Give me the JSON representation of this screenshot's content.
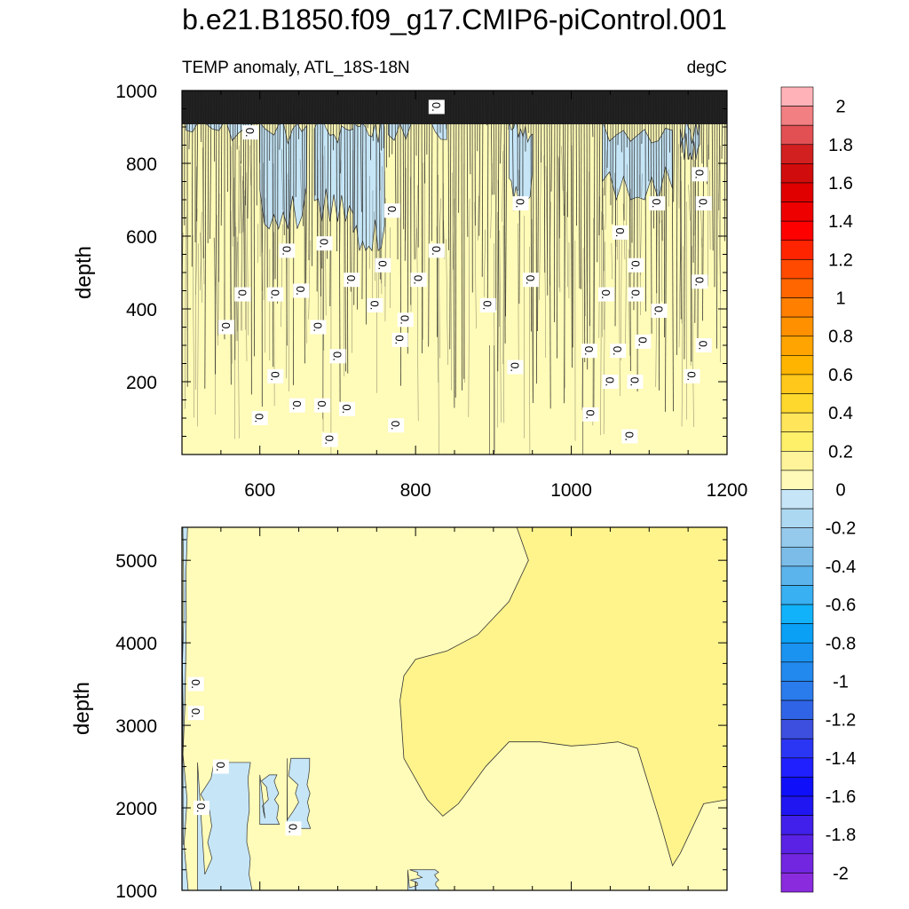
{
  "title": "b.e21.B1850.f09_g17.CMIP6-piControl.001",
  "chart_data": [
    {
      "type": "heatmap",
      "panel": "upper",
      "left_label": "TEMP anomaly, ATL_18S-18N",
      "right_label": "degC",
      "ylabel": "depth",
      "xlabel": "",
      "xlim": [
        500,
        1200
      ],
      "ylim": [
        1000,
        0
      ],
      "xticks": [
        "600",
        "800",
        "1000",
        "1200"
      ],
      "yticks": [
        "200",
        "400",
        "600",
        "800",
        "1000"
      ],
      "background_interval": "0 to 0.1",
      "regions": [
        {
          "name": "negative",
          "interval": "-0.1 to 0",
          "color": "#c6e6f7",
          "columns": [
            {
              "x": [
                505,
                590
              ],
              "depth_bottom": 1000
            },
            {
              "x": [
                600,
                660
              ],
              "depth_bottom": 620
            },
            {
              "x": [
                670,
                720
              ],
              "depth_bottom": 640
            },
            {
              "x": [
                720,
                760
              ],
              "depth_bottom": 560
            },
            {
              "x": [
                765,
                840
              ],
              "depth_bottom": 1000
            },
            {
              "x": [
                920,
                950
              ],
              "depth_bottom": 700
            },
            {
              "x": [
                1040,
                1130
              ],
              "depth_bottom": 700
            },
            {
              "x": [
                1140,
                1165
              ],
              "depth_bottom": 810
            }
          ]
        },
        {
          "name": "surface-noise",
          "interval": "many contours",
          "depth": [
            0,
            120
          ],
          "color": "#1a1a1a"
        }
      ],
      "contour_labels": [
        {
          "text": "0.",
          "x": 690,
          "y": 40
        },
        {
          "text": "0.",
          "x": 775,
          "y": 80
        },
        {
          "text": "0.",
          "x": 1075,
          "y": 50
        },
        {
          "text": "0.",
          "x": 600,
          "y": 100
        },
        {
          "text": "0.",
          "x": 648,
          "y": 135
        },
        {
          "text": "0.",
          "x": 680,
          "y": 135
        },
        {
          "text": "0.",
          "x": 712,
          "y": 125
        },
        {
          "text": "0.",
          "x": 1025,
          "y": 110
        },
        {
          "text": "0.",
          "x": 620,
          "y": 215
        },
        {
          "text": "0.",
          "x": 1050,
          "y": 200
        },
        {
          "text": "0.",
          "x": 1082,
          "y": 200
        },
        {
          "text": "0.",
          "x": 1155,
          "y": 215
        },
        {
          "text": "0.",
          "x": 928,
          "y": 240
        },
        {
          "text": "0.",
          "x": 700,
          "y": 270
        },
        {
          "text": "0.",
          "x": 1023,
          "y": 285
        },
        {
          "text": "0.",
          "x": 1060,
          "y": 285
        },
        {
          "text": "0.",
          "x": 1170,
          "y": 300
        },
        {
          "text": "0.",
          "x": 1092,
          "y": 310
        },
        {
          "text": "0.",
          "x": 780,
          "y": 315
        },
        {
          "text": "0.",
          "x": 557,
          "y": 350
        },
        {
          "text": "0.",
          "x": 675,
          "y": 350
        },
        {
          "text": "0.",
          "x": 787,
          "y": 370
        },
        {
          "text": "0.",
          "x": 1113,
          "y": 395
        },
        {
          "text": "0.",
          "x": 748,
          "y": 410
        },
        {
          "text": "0.",
          "x": 893,
          "y": 410
        },
        {
          "text": "0.",
          "x": 578,
          "y": 440
        },
        {
          "text": "0.",
          "x": 620,
          "y": 440
        },
        {
          "text": "0.",
          "x": 1045,
          "y": 440
        },
        {
          "text": "0.",
          "x": 1083,
          "y": 440
        },
        {
          "text": "0.",
          "x": 653,
          "y": 450
        },
        {
          "text": "0.",
          "x": 804,
          "y": 480
        },
        {
          "text": "0.",
          "x": 718,
          "y": 480
        },
        {
          "text": "0.",
          "x": 1165,
          "y": 475
        },
        {
          "text": "0.",
          "x": 948,
          "y": 480
        },
        {
          "text": "0.",
          "x": 758,
          "y": 520
        },
        {
          "text": "0.",
          "x": 1083,
          "y": 520
        },
        {
          "text": "0.",
          "x": 635,
          "y": 560
        },
        {
          "text": "0.",
          "x": 827,
          "y": 560
        },
        {
          "text": "0.",
          "x": 683,
          "y": 580
        },
        {
          "text": "0.",
          "x": 1063,
          "y": 610
        },
        {
          "text": "0.",
          "x": 770,
          "y": 670
        },
        {
          "text": "0.",
          "x": 935,
          "y": 690
        },
        {
          "text": "0.",
          "x": 1110,
          "y": 690
        },
        {
          "text": "0.",
          "x": 1170,
          "y": 690
        },
        {
          "text": "0.",
          "x": 1165,
          "y": 770
        },
        {
          "text": "0.",
          "x": 588,
          "y": 885
        },
        {
          "text": "0.",
          "x": 827,
          "y": 955
        }
      ]
    },
    {
      "type": "heatmap",
      "panel": "lower",
      "ylabel": "depth",
      "xlabel": "",
      "xlim": [
        500,
        1200
      ],
      "ylim": [
        5400,
        1000
      ],
      "yticks": [
        "1000",
        "2000",
        "3000",
        "4000",
        "5000"
      ],
      "background_interval": "0 to 0.1",
      "regions": [
        {
          "name": "warm-deep",
          "interval": "0.1 to 0.2",
          "color": "#fff48c",
          "boundary": [
            [
              1200,
              2100
            ],
            [
              1170,
              2050
            ],
            [
              1140,
              1450
            ],
            [
              1130,
              1300
            ],
            [
              1115,
              1800
            ],
            [
              1085,
              2720
            ],
            [
              1060,
              2800
            ],
            [
              1030,
              2770
            ],
            [
              1000,
              2750
            ],
            [
              960,
              2800
            ],
            [
              920,
              2800
            ],
            [
              890,
              2500
            ],
            [
              855,
              2050
            ],
            [
              835,
              1900
            ],
            [
              815,
              2100
            ],
            [
              785,
              2600
            ],
            [
              780,
              3300
            ],
            [
              785,
              3600
            ],
            [
              800,
              3800
            ],
            [
              840,
              3900
            ],
            [
              880,
              4100
            ],
            [
              920,
              4500
            ],
            [
              945,
              5000
            ],
            [
              930,
              5400
            ],
            [
              1200,
              5400
            ]
          ]
        },
        {
          "name": "negative",
          "interval": "-0.1 to 0",
          "color": "#c6e6f7",
          "patches": [
            {
              "x": [
                500,
                508
              ],
              "depth": [
                1000,
                5400
              ]
            },
            {
              "x": [
                520,
                590
              ],
              "depth": [
                1000,
                2550
              ]
            },
            {
              "x": [
                600,
                625
              ],
              "depth": [
                1800,
                2400
              ]
            },
            {
              "x": [
                635,
                665
              ],
              "depth": [
                1750,
                2600
              ]
            },
            {
              "x": [
                790,
                830
              ],
              "depth": [
                1000,
                1250
              ]
            }
          ]
        }
      ],
      "contour_labels": [
        {
          "text": "0.",
          "x": 525,
          "y": 2000
        },
        {
          "text": "0.",
          "x": 550,
          "y": 2500
        },
        {
          "text": "0.",
          "x": 643,
          "y": 1750
        },
        {
          "text": "0.",
          "x": 518,
          "y": 3150
        },
        {
          "text": "0.",
          "x": 518,
          "y": 3500
        }
      ]
    }
  ],
  "colorbar": {
    "labels": [
      "2",
      "1.8",
      "1.6",
      "1.4",
      "1.2",
      "1",
      "0.8",
      "0.6",
      "0.4",
      "0.2",
      "0",
      "-0.2",
      "-0.4",
      "-0.6",
      "-0.8",
      "-1",
      "-1.2",
      "-1.4",
      "-1.6",
      "-1.8",
      "-2"
    ],
    "colors_top_to_bottom": [
      "#ffb3b8",
      "#f27f82",
      "#e25054",
      "#d21f1f",
      "#d10c0c",
      "#e00000",
      "#ee0000",
      "#ff0000",
      "#ff2400",
      "#ff4a00",
      "#ff6600",
      "#ff7f00",
      "#ff9100",
      "#ffa400",
      "#ffb400",
      "#ffc81a",
      "#ffd82e",
      "#ffe55a",
      "#fff06a",
      "#fff49a",
      "#fffab8",
      "#c6e6f7",
      "#add8f2",
      "#95caec",
      "#7bbde8",
      "#5cb4ec",
      "#39b0f2",
      "#12b2fb",
      "#0aa0f5",
      "#1a93f0",
      "#2289ee",
      "#2a7bec",
      "#3064e6",
      "#3c4fde",
      "#2b36f4",
      "#2020ff",
      "#0f0ffa",
      "#2016f2",
      "#4020ea",
      "#5a22e4",
      "#7226e0",
      "#8a2bde"
    ]
  }
}
